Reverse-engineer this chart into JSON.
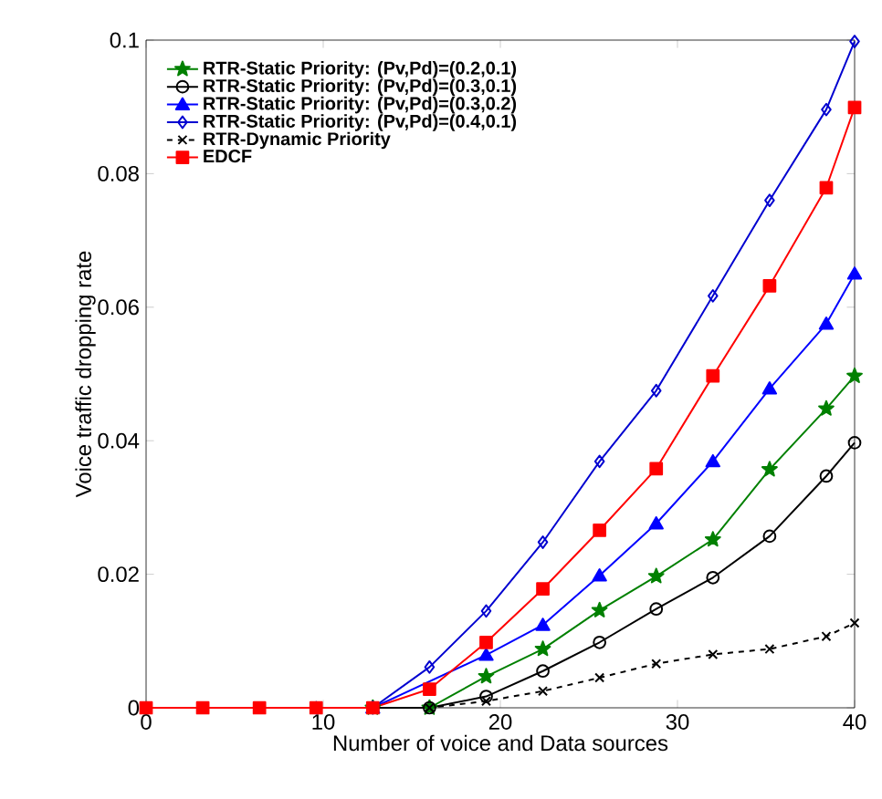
{
  "chart_data": {
    "type": "line",
    "xlabel": "Number of voice and Data sources",
    "ylabel": "Voice traffic dropping rate",
    "x": [
      0,
      3.2,
      6.4,
      9.6,
      12.8,
      16,
      19.2,
      22.4,
      25.6,
      28.8,
      32,
      35.2,
      38.4,
      40
    ],
    "xlim": [
      0,
      40
    ],
    "xticks": [
      0,
      10,
      20,
      30,
      40
    ],
    "ylim": [
      0,
      0.1
    ],
    "yticks": [
      {
        "value": 0,
        "label": "0"
      },
      {
        "value": 0.02,
        "label": "0.02"
      },
      {
        "value": 0.04,
        "label": "0.04"
      },
      {
        "value": 0.06,
        "label": "0.06"
      },
      {
        "value": 0.08,
        "label": "0.08"
      },
      {
        "value": 0.1,
        "label": "0.1"
      }
    ],
    "legend": "top left",
    "grid": false,
    "series": [
      {
        "name": "RTR-Static Priority: (Pv,Pd)=(0.2,0.1)",
        "color": "#008000",
        "marker": "star",
        "line_style": "solid",
        "values": [
          null,
          null,
          null,
          null,
          0,
          0,
          0.0047,
          0.0088,
          0.0146,
          0.0197,
          0.0252,
          0.0357,
          0.0448,
          0.0497
        ]
      },
      {
        "name": "RTR-Static Priority: (Pv,Pd)=(0.3,0.1)",
        "color": "#000000",
        "marker": "circle",
        "line_style": "solid",
        "values": [
          null,
          null,
          null,
          null,
          0,
          0,
          0.0017,
          0.0055,
          0.0098,
          0.0148,
          0.0195,
          0.0257,
          0.0347,
          0.0397
        ]
      },
      {
        "name": "RTR-Static Priority: (Pv,Pd)=(0.3,0.2)",
        "color": "#0000ff",
        "marker": "triangle",
        "line_style": "solid",
        "values": [
          null,
          null,
          null,
          null,
          0,
          null,
          0.0079,
          0.0124,
          0.0198,
          0.0276,
          0.0369,
          0.0478,
          0.0575,
          0.065
        ]
      },
      {
        "name": "RTR-Static Priority: (Pv,Pd)=(0.4,0.1)",
        "color": "#0000d0",
        "marker": "diamond",
        "line_style": "solid",
        "values": [
          null,
          null,
          null,
          0,
          0,
          0.0061,
          0.0145,
          0.0248,
          0.0369,
          0.0475,
          0.0617,
          0.076,
          0.0896,
          0.0998
        ]
      },
      {
        "name": "RTR-Dynamic Priority",
        "color": "#000000",
        "marker": "cross",
        "line_style": "dashed",
        "values": [
          null,
          null,
          null,
          null,
          0,
          0,
          0.001,
          0.0025,
          0.0045,
          0.0066,
          0.008,
          0.0088,
          0.0107,
          0.0127
        ]
      },
      {
        "name": "EDCF",
        "color": "#ff0000",
        "marker": "square",
        "line_style": "solid",
        "values": [
          0,
          0,
          0,
          0,
          0,
          0.0028,
          0.0098,
          0.0178,
          0.0266,
          0.0358,
          0.0497,
          0.0632,
          0.0779,
          0.0899
        ]
      }
    ]
  }
}
